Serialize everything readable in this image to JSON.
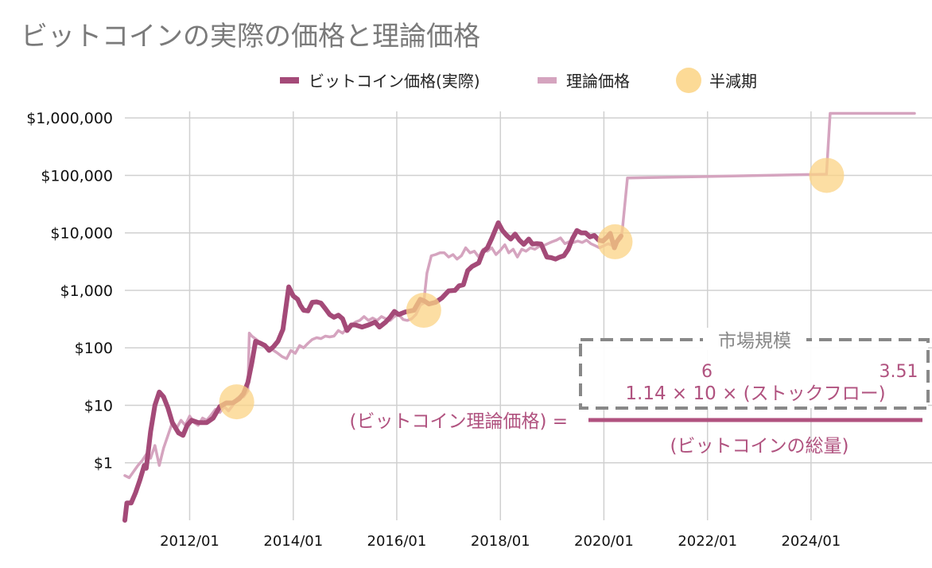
{
  "chart_data": {
    "type": "line",
    "title": "ビットコインの実際の価格と理論価格",
    "y_scale": "log",
    "ylim": [
      0.1,
      1300000
    ],
    "xlim": [
      "2010/10/01",
      "2025/12/31"
    ],
    "y_ticks": [
      {
        "value": 1,
        "label": "$1"
      },
      {
        "value": 10,
        "label": "$10"
      },
      {
        "value": 100,
        "label": "$100"
      },
      {
        "value": 1000,
        "label": "$1,000"
      },
      {
        "value": 10000,
        "label": "$10,000"
      },
      {
        "value": 100000,
        "label": "$100,000"
      },
      {
        "value": 1000000,
        "label": "$1,000,000"
      }
    ],
    "x_ticks": [
      {
        "value": "2012/01/01",
        "label": "2012/01"
      },
      {
        "value": "2014/01/01",
        "label": "2014/01"
      },
      {
        "value": "2016/01/01",
        "label": "2016/01"
      },
      {
        "value": "2018/01/01",
        "label": "2018/01"
      },
      {
        "value": "2020/01/01",
        "label": "2020/01"
      },
      {
        "value": "2022/01/01",
        "label": "2022/01"
      },
      {
        "value": "2024/01/01",
        "label": "2024/01"
      }
    ],
    "grid": true,
    "legend_position": "top",
    "legend": [
      "ビットコイン価格(実際)",
      "理論価格",
      "半減期"
    ],
    "series": [
      {
        "name": "ビットコイン価格(実際)",
        "color": "#a44a78",
        "points": [
          [
            "2010/10/01",
            0.1
          ],
          [
            "2010/10/15",
            0.2
          ],
          [
            "2010/11/15",
            0.2
          ],
          [
            "2010/12/15",
            0.3
          ],
          [
            "2011/01/15",
            0.5
          ],
          [
            "2011/02/15",
            0.9
          ],
          [
            "2011/03/01",
            0.8
          ],
          [
            "2011/04/01",
            3.5
          ],
          [
            "2011/05/01",
            10
          ],
          [
            "2011/06/01",
            17
          ],
          [
            "2011/07/01",
            14
          ],
          [
            "2011/08/01",
            9
          ],
          [
            "2011/09/01",
            5
          ],
          [
            "2011/10/15",
            3.3
          ],
          [
            "2011/11/15",
            3.0
          ],
          [
            "2011/12/15",
            4.5
          ],
          [
            "2012/01/15",
            5.5
          ],
          [
            "2012/03/01",
            5.0
          ],
          [
            "2012/05/01",
            5.0
          ],
          [
            "2012/06/15",
            6.0
          ],
          [
            "2012/08/01",
            9.5
          ],
          [
            "2012/09/15",
            11
          ],
          [
            "2012/11/01",
            11
          ],
          [
            "2012/12/15",
            13
          ],
          [
            "2013/01/15",
            16
          ],
          [
            "2013/02/15",
            25
          ],
          [
            "2013/03/15",
            55
          ],
          [
            "2013/04/10",
            130
          ],
          [
            "2013/05/15",
            120
          ],
          [
            "2013/06/15",
            110
          ],
          [
            "2013/07/15",
            90
          ],
          [
            "2013/08/15",
            105
          ],
          [
            "2013/09/15",
            130
          ],
          [
            "2013/10/20",
            210
          ],
          [
            "2013/11/30",
            1150
          ],
          [
            "2014/01/01",
            800
          ],
          [
            "2014/02/01",
            700
          ],
          [
            "2014/02/20",
            550
          ],
          [
            "2014/03/15",
            450
          ],
          [
            "2014/04/15",
            440
          ],
          [
            "2014/05/15",
            620
          ],
          [
            "2014/06/15",
            630
          ],
          [
            "2014/07/15",
            600
          ],
          [
            "2014/08/15",
            480
          ],
          [
            "2014/09/15",
            380
          ],
          [
            "2014/10/15",
            340
          ],
          [
            "2014/11/15",
            370
          ],
          [
            "2014/12/15",
            320
          ],
          [
            "2015/01/15",
            200
          ],
          [
            "2015/02/15",
            250
          ],
          [
            "2015/03/15",
            250
          ],
          [
            "2015/05/01",
            230
          ],
          [
            "2015/06/15",
            250
          ],
          [
            "2015/08/01",
            280
          ],
          [
            "2015/09/01",
            230
          ],
          [
            "2015/10/15",
            280
          ],
          [
            "2015/11/15",
            340
          ],
          [
            "2015/12/15",
            430
          ],
          [
            "2016/01/15",
            380
          ],
          [
            "2016/03/01",
            420
          ],
          [
            "2016/05/01",
            450
          ],
          [
            "2016/06/15",
            700
          ],
          [
            "2016/07/15",
            650
          ],
          [
            "2016/08/15",
            580
          ],
          [
            "2016/10/01",
            620
          ],
          [
            "2016/11/15",
            740
          ],
          [
            "2017/01/01",
            980
          ],
          [
            "2017/02/15",
            1000
          ],
          [
            "2017/03/15",
            1200
          ],
          [
            "2017/04/15",
            1250
          ],
          [
            "2017/05/15",
            2200
          ],
          [
            "2017/06/15",
            2600
          ],
          [
            "2017/08/01",
            3000
          ],
          [
            "2017/09/01",
            4700
          ],
          [
            "2017/10/01",
            5500
          ],
          [
            "2017/11/01",
            8000
          ],
          [
            "2017/12/17",
            15000
          ],
          [
            "2018/01/15",
            11000
          ],
          [
            "2018/02/15",
            9000
          ],
          [
            "2018/03/15",
            7800
          ],
          [
            "2018/04/15",
            9500
          ],
          [
            "2018/05/15",
            7500
          ],
          [
            "2018/06/15",
            6300
          ],
          [
            "2018/07/20",
            7800
          ],
          [
            "2018/08/15",
            6400
          ],
          [
            "2018/09/15",
            6500
          ],
          [
            "2018/10/15",
            6400
          ],
          [
            "2018/11/25",
            3800
          ],
          [
            "2018/12/25",
            3700
          ],
          [
            "2019/01/25",
            3500
          ],
          [
            "2019/02/25",
            3800
          ],
          [
            "2019/03/25",
            4000
          ],
          [
            "2019/04/25",
            5200
          ],
          [
            "2019/05/25",
            8000
          ],
          [
            "2019/06/25",
            11000
          ],
          [
            "2019/07/25",
            10000
          ],
          [
            "2019/08/25",
            10000
          ],
          [
            "2019/09/25",
            8500
          ],
          [
            "2019/10/25",
            9000
          ],
          [
            "2019/11/25",
            7500
          ],
          [
            "2019/12/25",
            7200
          ],
          [
            "2020/01/25",
            8500
          ],
          [
            "2020/02/15",
            9800
          ],
          [
            "2020/03/15",
            5500
          ],
          [
            "2020/04/01",
            7000
          ],
          [
            "2020/05/01",
            8800
          ]
        ]
      },
      {
        "name": "理論価格",
        "color": "#d5a4bf",
        "points": [
          [
            "2010/10/01",
            0.6
          ],
          [
            "2010/11/01",
            0.55
          ],
          [
            "2010/12/01",
            0.7
          ],
          [
            "2011/01/01",
            0.9
          ],
          [
            "2011/02/01",
            1.1
          ],
          [
            "2011/03/01",
            1.4
          ],
          [
            "2011/04/01",
            1.2
          ],
          [
            "2011/05/01",
            2.0
          ],
          [
            "2011/06/01",
            0.9
          ],
          [
            "2011/07/01",
            1.8
          ],
          [
            "2011/08/01",
            3.0
          ],
          [
            "2011/09/01",
            5.0
          ],
          [
            "2011/10/01",
            4.0
          ],
          [
            "2011/11/01",
            5.5
          ],
          [
            "2011/12/01",
            4.5
          ],
          [
            "2012/01/01",
            6.5
          ],
          [
            "2012/02/01",
            5.0
          ],
          [
            "2012/03/01",
            4.5
          ],
          [
            "2012/04/01",
            6.0
          ],
          [
            "2012/05/01",
            5.5
          ],
          [
            "2012/06/01",
            6.8
          ],
          [
            "2012/07/01",
            8.5
          ],
          [
            "2012/08/01",
            7.5
          ],
          [
            "2012/09/01",
            9.5
          ],
          [
            "2012/10/01",
            8.0
          ],
          [
            "2012/11/01",
            10
          ],
          [
            "2012/11/28",
            13
          ],
          [
            "2012/12/15",
            14
          ],
          [
            "2013/01/15",
            14
          ],
          [
            "2013/02/15",
            18
          ],
          [
            "2013/02/25",
            180
          ],
          [
            "2013/03/15",
            160
          ],
          [
            "2013/04/15",
            140
          ],
          [
            "2013/05/15",
            120
          ],
          [
            "2013/06/15",
            110
          ],
          [
            "2013/07/15",
            100
          ],
          [
            "2013/08/15",
            90
          ],
          [
            "2013/09/15",
            80
          ],
          [
            "2013/10/15",
            70
          ],
          [
            "2013/11/15",
            65
          ],
          [
            "2013/12/15",
            90
          ],
          [
            "2014/01/15",
            80
          ],
          [
            "2014/02/15",
            110
          ],
          [
            "2014/03/15",
            100
          ],
          [
            "2014/04/15",
            120
          ],
          [
            "2014/05/15",
            140
          ],
          [
            "2014/06/15",
            150
          ],
          [
            "2014/07/15",
            145
          ],
          [
            "2014/08/15",
            160
          ],
          [
            "2014/09/15",
            155
          ],
          [
            "2014/10/15",
            160
          ],
          [
            "2014/11/15",
            200
          ],
          [
            "2014/12/15",
            180
          ],
          [
            "2015/01/15",
            220
          ],
          [
            "2015/02/15",
            250
          ],
          [
            "2015/03/15",
            280
          ],
          [
            "2015/04/15",
            300
          ],
          [
            "2015/05/15",
            350
          ],
          [
            "2015/06/15",
            300
          ],
          [
            "2015/07/15",
            330
          ],
          [
            "2015/08/15",
            300
          ],
          [
            "2015/09/15",
            350
          ],
          [
            "2015/10/15",
            320
          ],
          [
            "2015/11/15",
            300
          ],
          [
            "2015/12/15",
            350
          ],
          [
            "2016/01/15",
            380
          ],
          [
            "2016/02/15",
            310
          ],
          [
            "2016/03/15",
            300
          ],
          [
            "2016/04/15",
            320
          ],
          [
            "2016/05/15",
            380
          ],
          [
            "2016/06/15",
            550
          ],
          [
            "2016/07/09",
            600
          ],
          [
            "2016/08/01",
            2000
          ],
          [
            "2016/09/01",
            4000
          ],
          [
            "2016/10/01",
            4200
          ],
          [
            "2016/11/01",
            4500
          ],
          [
            "2016/12/01",
            4500
          ],
          [
            "2017/01/01",
            3800
          ],
          [
            "2017/02/01",
            4200
          ],
          [
            "2017/03/01",
            3500
          ],
          [
            "2017/04/01",
            4000
          ],
          [
            "2017/05/01",
            5500
          ],
          [
            "2017/06/01",
            4500
          ],
          [
            "2017/07/01",
            4800
          ],
          [
            "2017/08/01",
            3800
          ],
          [
            "2017/09/01",
            5200
          ],
          [
            "2017/10/01",
            4800
          ],
          [
            "2017/11/01",
            5500
          ],
          [
            "2017/12/01",
            4200
          ],
          [
            "2018/01/01",
            5000
          ],
          [
            "2018/02/01",
            6200
          ],
          [
            "2018/03/01",
            4500
          ],
          [
            "2018/04/01",
            5200
          ],
          [
            "2018/05/01",
            3800
          ],
          [
            "2018/06/01",
            5200
          ],
          [
            "2018/07/01",
            4800
          ],
          [
            "2018/08/01",
            5500
          ],
          [
            "2018/09/01",
            5200
          ],
          [
            "2018/10/01",
            5800
          ],
          [
            "2018/11/01",
            6000
          ],
          [
            "2018/12/01",
            6500
          ],
          [
            "2019/01/01",
            7000
          ],
          [
            "2019/02/01",
            7500
          ],
          [
            "2019/03/01",
            8200
          ],
          [
            "2019/04/01",
            6500
          ],
          [
            "2019/05/01",
            7000
          ],
          [
            "2019/06/01",
            6800
          ],
          [
            "2019/07/01",
            7200
          ],
          [
            "2019/08/01",
            6800
          ],
          [
            "2019/09/01",
            7500
          ],
          [
            "2019/10/01",
            6500
          ],
          [
            "2019/11/01",
            6000
          ],
          [
            "2019/12/01",
            5500
          ],
          [
            "2020/01/01",
            6000
          ],
          [
            "2020/02/01",
            6500
          ],
          [
            "2020/03/01",
            6000
          ],
          [
            "2020/04/01",
            7000
          ],
          [
            "2020/05/01",
            8000
          ],
          [
            "2020/05/11",
            12000
          ],
          [
            "2020/06/15",
            90000
          ],
          [
            "2024/04/19",
            105000
          ],
          [
            "2024/05/15",
            1200000
          ],
          [
            "2025/12/31",
            1200000
          ]
        ]
      }
    ],
    "halvings": {
      "name": "半減期",
      "color": "#fbd384",
      "points": [
        [
          "2012/11/28",
          11.5
        ],
        [
          "2016/07/09",
          450
        ],
        [
          "2020/03/20",
          7000
        ],
        [
          "2024/04/20",
          100000
        ]
      ]
    },
    "annotation": {
      "lhs": "(ビットコイン理論価格) =",
      "numerator": "1.14 × 10 × (ストックフロー)",
      "exponent_6": "6",
      "exponent_351": "3.51",
      "denominator": "(ビットコインの総量)",
      "box_label": "市場規模"
    }
  }
}
